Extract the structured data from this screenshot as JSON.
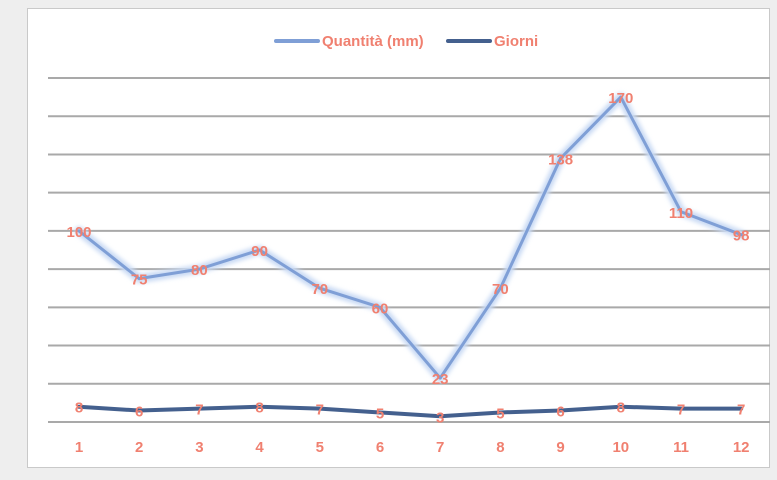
{
  "colors": {
    "series_1": "#7f9fd6",
    "series_1_glow": "#c9daf4",
    "series_2": "#44608e",
    "label": "#f08070",
    "grid": "#a9a9a9",
    "frame": "#c9c9c9",
    "background": "#ffffff"
  },
  "legend": {
    "placement": "top-center",
    "items": [
      {
        "name": "Quantità (mm)"
      },
      {
        "name": "Giorni"
      }
    ]
  },
  "chart_data": {
    "type": "line",
    "x": [
      "1",
      "2",
      "3",
      "4",
      "5",
      "6",
      "7",
      "8",
      "9",
      "10",
      "11",
      "12"
    ],
    "series": [
      {
        "name": "Quantità (mm)",
        "values": [
          100,
          75,
          80,
          90,
          70,
          60,
          23,
          70,
          138,
          170,
          110,
          98
        ]
      },
      {
        "name": "Giorni",
        "values": [
          8,
          6,
          7,
          8,
          7,
          5,
          3,
          5,
          6,
          8,
          7,
          7
        ]
      }
    ],
    "ylim": [
      0,
      180
    ],
    "y_major_unit": 20,
    "grid": true,
    "y_axis_labels_visible": false,
    "data_labels": true
  }
}
